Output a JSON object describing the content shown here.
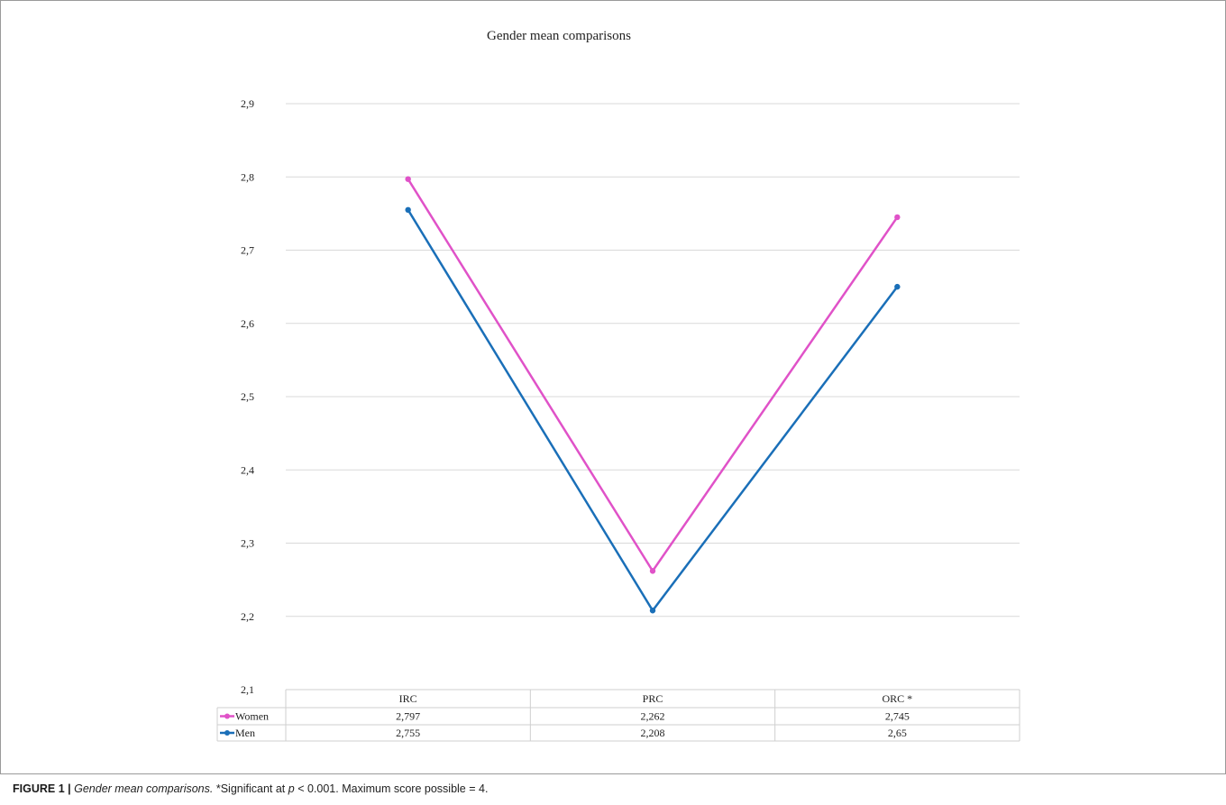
{
  "chart_data": {
    "type": "line",
    "title": "Gender mean comparisons",
    "categories": [
      "IRC",
      "PRC",
      "ORC *"
    ],
    "series": [
      {
        "name": "Women",
        "values": [
          2.797,
          2.262,
          2.745
        ],
        "labels": [
          "2,797",
          "2,262",
          "2,745"
        ],
        "color": "#e052c8"
      },
      {
        "name": "Men",
        "values": [
          2.755,
          2.208,
          2.65
        ],
        "labels": [
          "2,755",
          "2,208",
          "2,65"
        ],
        "color": "#1a6fb8"
      }
    ],
    "ylim": [
      2.1,
      2.9
    ],
    "yticks": [
      "2,1",
      "2,2",
      "2,3",
      "2,4",
      "2,5",
      "2,6",
      "2,7",
      "2,8",
      "2,9"
    ],
    "grid": true,
    "legend": "data-table"
  },
  "caption": {
    "label": "FIGURE 1 |",
    "title": "Gender mean comparisons.",
    "note_before": "*Significant at",
    "p": "p",
    "note_after": "< 0.001. Maximum score possible = 4."
  }
}
